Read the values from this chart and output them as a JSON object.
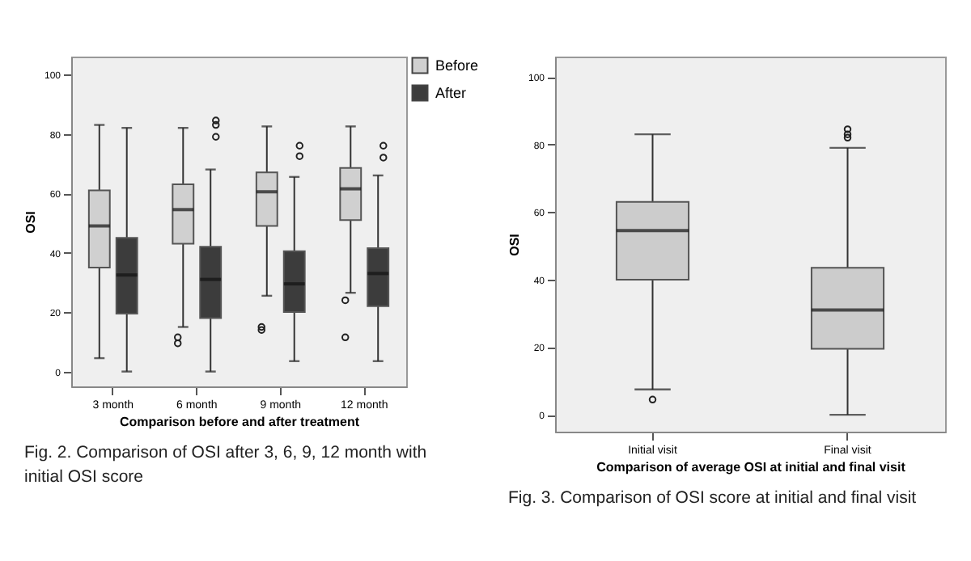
{
  "chart_data": [
    {
      "type": "box",
      "xlabel": "Comparison before and after treatment",
      "ylabel": "OSI",
      "categories": [
        "3 month",
        "6 month",
        "9 month",
        "12 month"
      ],
      "ylim": [
        -5,
        106
      ],
      "yticks": [
        0,
        20,
        40,
        60,
        80,
        100
      ],
      "legend": "top right",
      "grid": false,
      "series": [
        {
          "name": "Before",
          "color": "#d0d0d0",
          "boxes": [
            {
              "low": 4.5,
              "q1": 35,
              "median": 49,
              "q3": 61,
              "high": 83
            },
            {
              "low": 15,
              "q1": 43,
              "median": 54.5,
              "q3": 63,
              "high": 82,
              "outliers": [
                11.5,
                9.5
              ]
            },
            {
              "low": 25.5,
              "q1": 49,
              "median": 60.5,
              "q3": 67,
              "high": 82.5,
              "outliers": [
                15,
                14
              ]
            },
            {
              "low": 26.5,
              "q1": 51,
              "median": 61.5,
              "q3": 68.5,
              "high": 82.5,
              "outliers": [
                24,
                11.5
              ]
            }
          ]
        },
        {
          "name": "After",
          "color": "#3c3c3c",
          "boxes": [
            {
              "low": 0,
              "q1": 19.5,
              "median": 32.5,
              "q3": 45,
              "high": 82
            },
            {
              "low": 0,
              "q1": 18,
              "median": 31,
              "q3": 42,
              "high": 68,
              "outliers": [
                84.5,
                83,
                79
              ]
            },
            {
              "low": 3.5,
              "q1": 20,
              "median": 29.5,
              "q3": 40.5,
              "high": 65.5,
              "outliers": [
                76,
                72.5
              ]
            },
            {
              "low": 3.5,
              "q1": 22,
              "median": 33,
              "q3": 41.5,
              "high": 66,
              "outliers": [
                76,
                72
              ]
            }
          ]
        }
      ],
      "annotations": [
        "Fig. 2. Comparison of OSI after 3, 6, 9, 12 month with initial OSI score"
      ]
    },
    {
      "type": "box",
      "xlabel": "Comparison of average OSI at initial and final visit",
      "ylabel": "OSI",
      "categories": [
        "Initial visit",
        "Final visit"
      ],
      "ylim": [
        -5,
        106
      ],
      "yticks": [
        0,
        20,
        40,
        60,
        80,
        100
      ],
      "grid": false,
      "color": "#cccccc",
      "boxes": [
        {
          "low": 7.5,
          "q1": 40,
          "median": 54.5,
          "q3": 63,
          "high": 83,
          "outliers": [
            4.5
          ]
        },
        {
          "low": 0,
          "q1": 19.5,
          "median": 31,
          "q3": 43.5,
          "high": 79,
          "outliers": [
            84.5,
            83,
            82
          ]
        }
      ],
      "annotations": [
        "Fig. 3.  Comparison of OSI score at initial and final visit"
      ]
    }
  ]
}
